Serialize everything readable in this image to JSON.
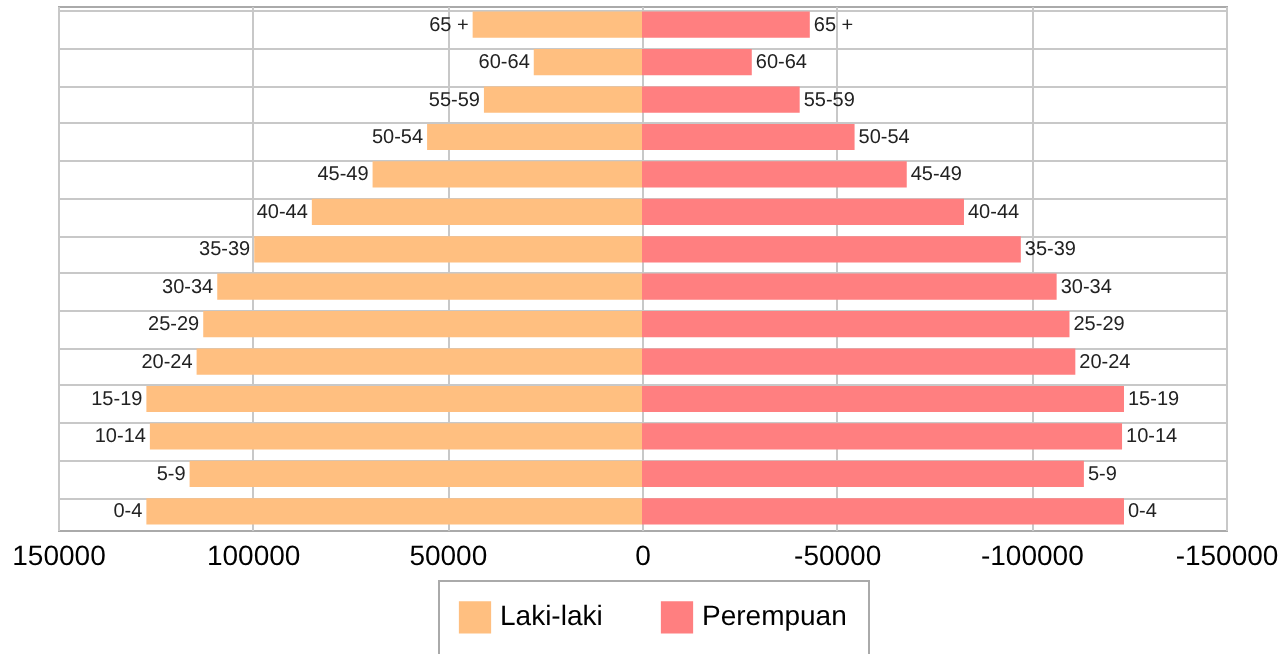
{
  "chart_data": {
    "type": "bar",
    "orientation": "horizontal",
    "stacked": true,
    "categories": [
      "65 +",
      "60-64",
      "55-59",
      "50-54",
      "45-49",
      "40-44",
      "35-39",
      "30-34",
      "25-29",
      "20-24",
      "15-19",
      "10-14",
      "5-9",
      "0-4"
    ],
    "series": [
      {
        "name": "Laki-laki",
        "color": "#ffbf80",
        "values": [
          43500,
          27800,
          40600,
          55200,
          69200,
          84800,
          99600,
          109100,
          112700,
          114400,
          127300,
          126400,
          116200,
          127300
        ]
      },
      {
        "name": "Perempuan",
        "color": "#ff7f80",
        "values": [
          -43100,
          -28200,
          -40500,
          -54600,
          -68000,
          -82700,
          -97300,
          -106500,
          -109800,
          -111300,
          -123800,
          -123300,
          -113500,
          -123800
        ]
      }
    ],
    "xlim": [
      150000,
      -150000
    ],
    "xticks": [
      150000,
      100000,
      50000,
      0,
      -50000,
      -100000,
      -150000
    ],
    "grid": true,
    "legend": "bottom"
  }
}
